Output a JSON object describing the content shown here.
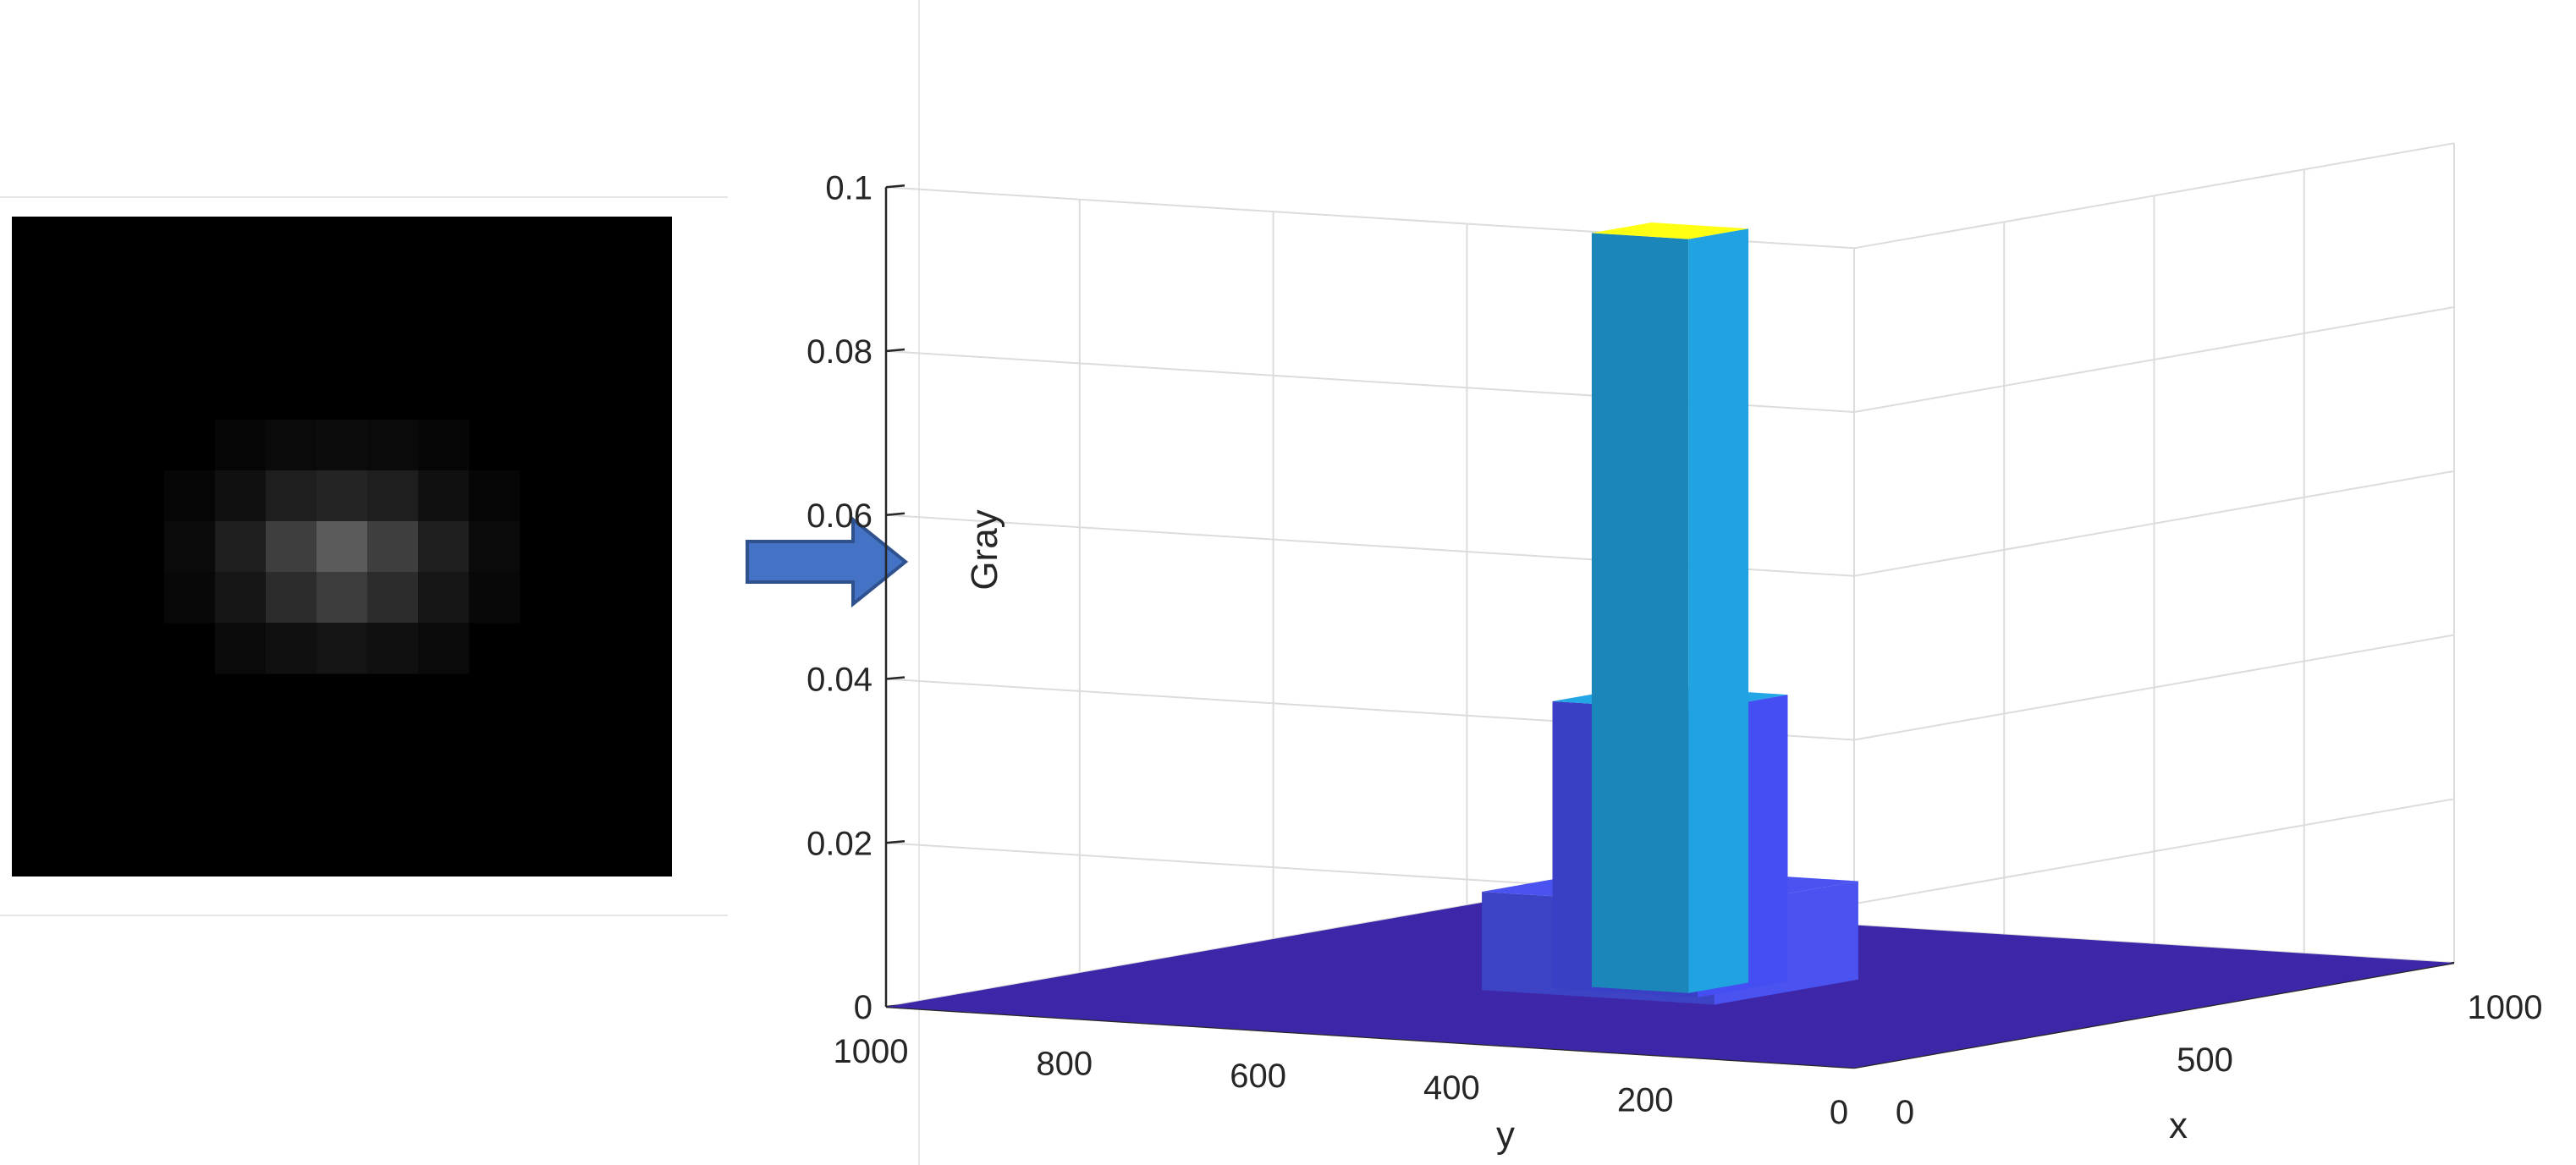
{
  "psf_image": {
    "grid_size": 13,
    "intensities": [
      [
        0,
        0,
        0,
        0,
        0,
        0,
        0,
        0,
        0,
        0,
        0,
        0,
        0
      ],
      [
        0,
        0,
        0,
        0,
        0,
        0,
        0,
        0,
        0,
        0,
        0,
        0,
        0
      ],
      [
        0,
        0,
        0,
        0,
        0,
        0,
        0,
        0,
        0,
        0,
        0,
        0,
        0
      ],
      [
        0,
        0,
        0,
        0,
        0,
        0,
        0,
        0,
        0,
        0,
        0,
        0,
        0
      ],
      [
        0,
        0,
        0,
        0,
        6,
        10,
        12,
        10,
        6,
        0,
        0,
        0,
        0
      ],
      [
        0,
        0,
        0,
        6,
        16,
        30,
        36,
        30,
        16,
        6,
        0,
        0,
        0
      ],
      [
        0,
        0,
        0,
        10,
        30,
        62,
        90,
        62,
        30,
        10,
        0,
        0,
        0
      ],
      [
        0,
        0,
        0,
        8,
        22,
        44,
        60,
        44,
        22,
        8,
        0,
        0,
        0
      ],
      [
        0,
        0,
        0,
        0,
        10,
        16,
        20,
        16,
        10,
        0,
        0,
        0,
        0
      ],
      [
        0,
        0,
        0,
        0,
        0,
        0,
        0,
        0,
        0,
        0,
        0,
        0,
        0
      ],
      [
        0,
        0,
        0,
        0,
        0,
        0,
        0,
        0,
        0,
        0,
        0,
        0,
        0
      ],
      [
        0,
        0,
        0,
        0,
        0,
        0,
        0,
        0,
        0,
        0,
        0,
        0,
        0
      ],
      [
        0,
        0,
        0,
        0,
        0,
        0,
        0,
        0,
        0,
        0,
        0,
        0,
        0
      ]
    ]
  },
  "arrow": {
    "color": "#4472C4",
    "border": "#2F528F",
    "icon": "right-arrow-icon"
  },
  "chart_data": {
    "type": "bar3d",
    "xlabel": "x",
    "ylabel": "y",
    "zlabel": "Gray",
    "xlim": [
      0,
      1000
    ],
    "ylim": [
      0,
      1000
    ],
    "zlim": [
      0,
      0.1
    ],
    "x_ticks": [
      "0",
      "500",
      "1000"
    ],
    "y_ticks": [
      "0",
      "200",
      "400",
      "600",
      "800",
      "1000"
    ],
    "z_ticks": [
      "0",
      "0.02",
      "0.04",
      "0.06",
      "0.08",
      "0.1"
    ],
    "grid": true,
    "colormap": "parula",
    "columns": [
      {
        "level": "center",
        "value": 0.092,
        "color": "#21A3E1",
        "top_color": "#FFFF14"
      },
      {
        "level": "ring",
        "value": 0.035,
        "color": "#454EF2",
        "top_color": "#22A6E6"
      },
      {
        "level": "outer",
        "value": 0.012,
        "color": "#4A52F0"
      }
    ],
    "base_value": 0,
    "base_color": "#3E26A8"
  }
}
